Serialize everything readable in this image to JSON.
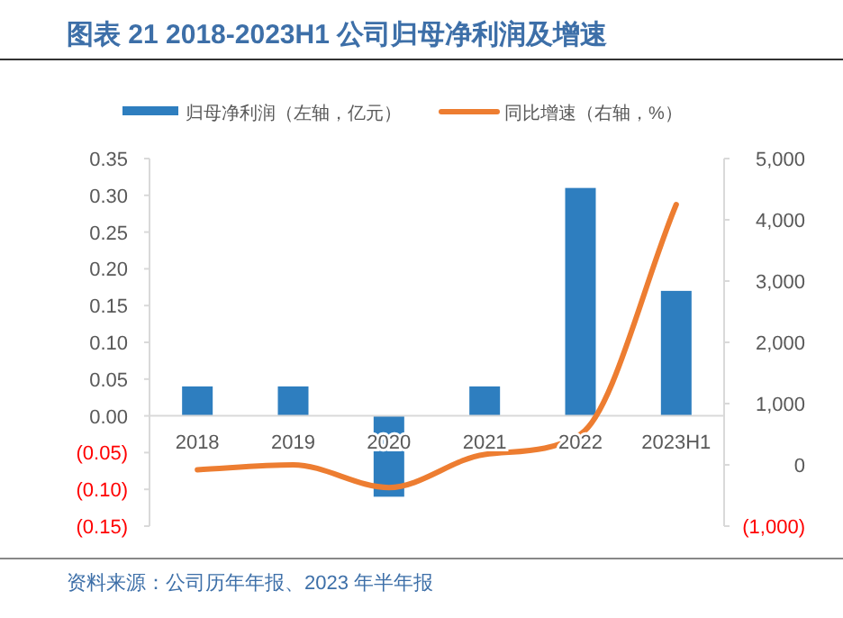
{
  "chart_data": {
    "type": "bar",
    "title": "图表 21 2018-2023H1 公司归母净利润及增速",
    "categories": [
      "2018",
      "2019",
      "2020",
      "2021",
      "2022",
      "2023H1"
    ],
    "series": [
      {
        "name": "归母净利润（左轴，亿元）",
        "color": "#2e7ebf",
        "values": [
          0.04,
          0.04,
          -0.11,
          0.04,
          0.31,
          0.17
        ]
      },
      {
        "name": "同比增速（右轴，%）",
        "type": "line",
        "axis": "y2",
        "color": "#ed7d31",
        "values": [
          -80,
          0,
          -370,
          170,
          500,
          4250
        ]
      }
    ],
    "ylim": [
      -0.15,
      0.35
    ],
    "yticks": [
      {
        "value": -0.15,
        "label": "(0.15)"
      },
      {
        "value": -0.1,
        "label": "(0.10)"
      },
      {
        "value": -0.05,
        "label": "(0.05)"
      },
      {
        "value": 0,
        "label": "0.00"
      },
      {
        "value": 0.05,
        "label": "0.05"
      },
      {
        "value": 0.1,
        "label": "0.10"
      },
      {
        "value": 0.15,
        "label": "0.15"
      },
      {
        "value": 0.2,
        "label": "0.20"
      },
      {
        "value": 0.25,
        "label": "0.25"
      },
      {
        "value": 0.3,
        "label": "0.30"
      },
      {
        "value": 0.35,
        "label": "0.35"
      }
    ],
    "y2lim": [
      -1000,
      5000
    ],
    "y2ticks": [
      {
        "value": -1000,
        "label": "(1,000)"
      },
      {
        "value": 0,
        "label": "0"
      },
      {
        "value": 1000,
        "label": "1,000"
      },
      {
        "value": 2000,
        "label": "2,000"
      },
      {
        "value": 3000,
        "label": "3,000"
      },
      {
        "value": 4000,
        "label": "4,000"
      },
      {
        "value": 5000,
        "label": "5,000"
      }
    ],
    "legend": "top",
    "grid": false,
    "annotations": [
      "资料来源：公司历年年报、2023 年半年报"
    ]
  }
}
